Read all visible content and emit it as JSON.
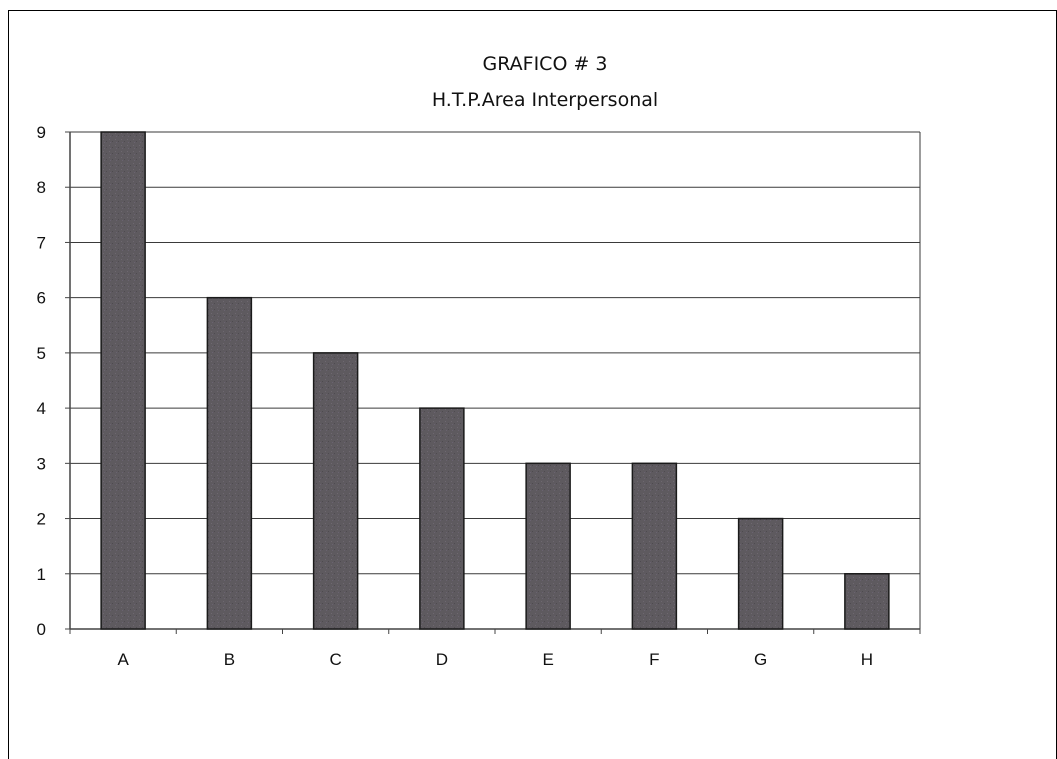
{
  "chart_data": {
    "type": "bar",
    "title": "GRAFICO # 3",
    "subtitle": "H.T.P.Area Interpersonal",
    "categories": [
      "A",
      "B",
      "C",
      "D",
      "E",
      "F",
      "G",
      "H"
    ],
    "values": [
      9,
      6,
      5,
      4,
      3,
      3,
      2,
      1
    ],
    "ylim": [
      0,
      9
    ],
    "yticks": [
      0,
      1,
      2,
      3,
      4,
      5,
      6,
      7,
      8,
      9
    ],
    "grid": true,
    "legend": "none",
    "xlabel": "",
    "ylabel": "",
    "colors": {
      "bar_fill": "#5e5a5f",
      "bar_stroke": "#1a1a1a",
      "grid": "#3a3a3a",
      "axis": "#444444",
      "text": "#111111"
    }
  }
}
